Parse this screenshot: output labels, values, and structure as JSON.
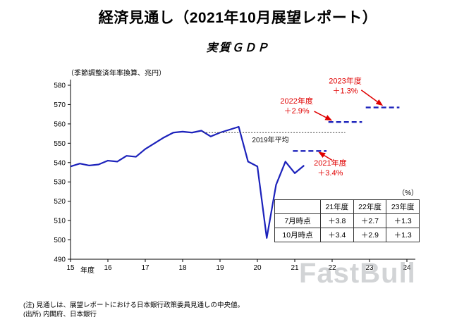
{
  "header": {
    "title": "経済見通し（2021年10月展望レポート）",
    "subtitle": "実質ＧＤＰ"
  },
  "chart_data": {
    "type": "line",
    "title": "実質ＧＤＰ",
    "unit_label": "（季節調整済年率換算、兆円）",
    "xlabel": "年度",
    "xlim": [
      15,
      24
    ],
    "ylim": [
      490,
      580
    ],
    "xticks": [
      15,
      16,
      17,
      18,
      19,
      20,
      21,
      22,
      23,
      24
    ],
    "yticks": [
      490,
      500,
      510,
      520,
      530,
      540,
      550,
      560,
      570,
      580
    ],
    "colors": {
      "line": "#1c22bb",
      "annotation": "#e00000",
      "reference": "#404040"
    },
    "series": [
      {
        "name": "実質GDP（実績）",
        "style": "solid",
        "x": [
          15,
          15.25,
          15.5,
          15.75,
          16,
          16.25,
          16.5,
          16.75,
          17,
          17.25,
          17.5,
          17.75,
          18,
          18.25,
          18.5,
          18.75,
          19,
          19.25,
          19.5,
          19.75,
          20,
          20.25,
          20.5,
          20.75,
          21,
          21.25
        ],
        "y": [
          538,
          539.5,
          538.5,
          539,
          541,
          540.5,
          543.5,
          543,
          547,
          550,
          553,
          555.5,
          556,
          555.5,
          556.5,
          553.5,
          555.5,
          557,
          558.5,
          540.5,
          538,
          501,
          528.5,
          540.5,
          534.5,
          538.5
        ]
      }
    ],
    "reference_line": {
      "label": "2019年平均",
      "y": 555.5,
      "x1": 18.55,
      "x2": 22.35,
      "label_x": 20.35,
      "label_y": 550.5
    },
    "forecasts": [
      {
        "label": "2021年度",
        "pct": "＋3.4%",
        "y": 546,
        "x1": 20.95,
        "x2": 21.85,
        "label_x": 21.95,
        "label_y": 538.5,
        "arrow": {
          "x1": 22.0,
          "y1": 541.2,
          "x2": 21.66,
          "y2": 545.2
        }
      },
      {
        "label": "2022年度",
        "pct": "＋2.9%",
        "y": 561,
        "x1": 21.9,
        "x2": 22.8,
        "label_x": 21.05,
        "label_y": 570.5,
        "arrow": {
          "x1": 21.52,
          "y1": 566.5,
          "x2": 21.97,
          "y2": 562.0
        }
      },
      {
        "label": "2023年度",
        "pct": "＋1.3%",
        "y": 568.5,
        "x1": 22.9,
        "x2": 23.8,
        "label_x": 22.35,
        "label_y": 581,
        "arrow": {
          "x1": 22.78,
          "y1": 577.5,
          "x2": 23.33,
          "y2": 569.8
        }
      }
    ]
  },
  "table": {
    "unit": "（%）",
    "col_headers": [
      "21年度",
      "22年度",
      "23年度"
    ],
    "rows": [
      {
        "label": "7月時点",
        "values": [
          "＋3.8",
          "＋2.7",
          "＋1.3"
        ]
      },
      {
        "label": "10月時点",
        "values": [
          "＋3.4",
          "＋2.9",
          "＋1.3"
        ]
      }
    ]
  },
  "notes": {
    "note": "(注) 見通しは、展望レポートにおける日本銀行政策委員見通しの中央値。",
    "source": "(出所) 内閣府、日本銀行"
  },
  "watermark": "FastBull"
}
